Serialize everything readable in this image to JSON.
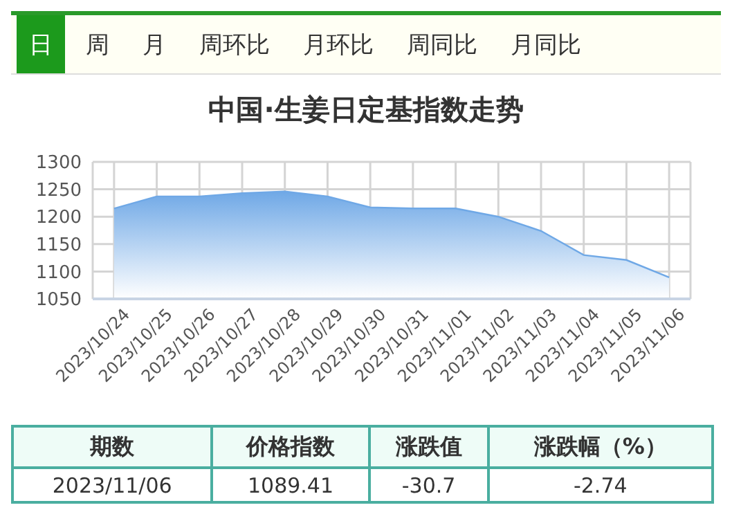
{
  "chart_data": {
    "type": "area",
    "title": "中国·生姜日定基指数走势",
    "categories": [
      "2023/10/24",
      "2023/10/25",
      "2023/10/26",
      "2023/10/27",
      "2023/10/28",
      "2023/10/29",
      "2023/10/30",
      "2023/10/31",
      "2023/11/01",
      "2023/11/02",
      "2023/11/03",
      "2023/11/04",
      "2023/11/05",
      "2023/11/06"
    ],
    "values": [
      1215,
      1237,
      1237,
      1243,
      1246,
      1237,
      1217,
      1215,
      1215,
      1200,
      1174,
      1130,
      1121,
      1089.41
    ],
    "color": "#6fa8e6",
    "ylim": [
      1050,
      1300
    ],
    "yticks": [
      1050,
      1100,
      1150,
      1200,
      1250,
      1300
    ],
    "grid": true,
    "annotations": [
      "日",
      "周",
      "月",
      "周环比",
      "月环比",
      "周同比",
      "月同比",
      "期数",
      "价格指数",
      "涨跌值",
      "涨跌幅（%）",
      "2023/11/06",
      "1089.41",
      "-30.7",
      "-2.74"
    ]
  }
}
